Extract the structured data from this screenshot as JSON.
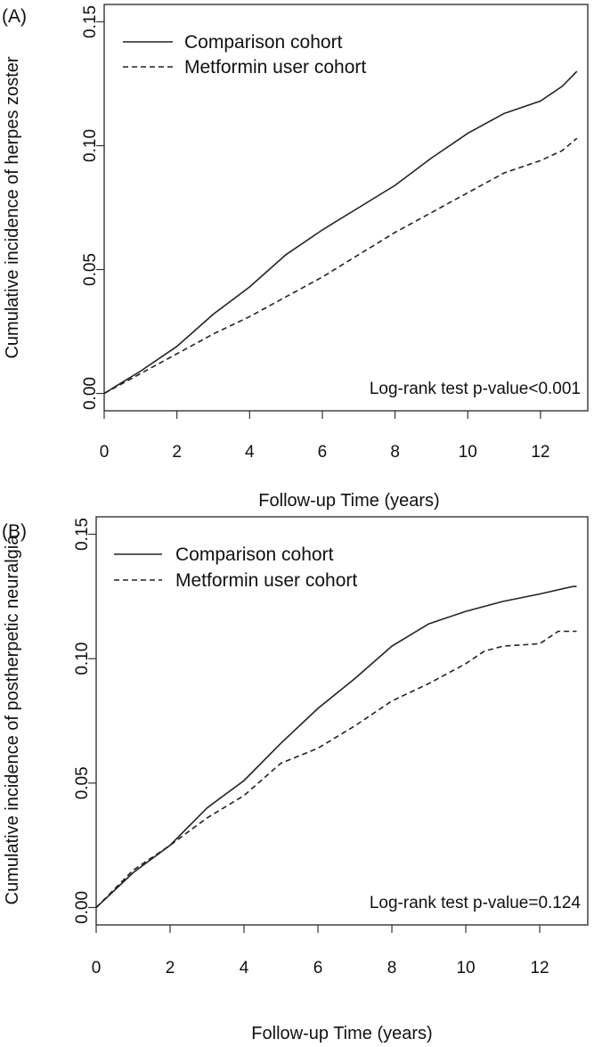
{
  "chart_data": [
    {
      "type": "line",
      "panel_label": "(A)",
      "title": "",
      "xlabel": "Follow-up Time (years)",
      "ylabel": "Cumulative incidence of  herpes zoster",
      "xlim": [
        0,
        13.3
      ],
      "ylim": [
        -0.007,
        0.157
      ],
      "xticks": [
        0,
        2,
        4,
        6,
        8,
        10,
        12
      ],
      "yticks": [
        "0.00",
        "0.05",
        "0.10",
        "0.15"
      ],
      "grid": false,
      "legend_position": "top-left",
      "annotation": "Log-rank test p-value<0.001",
      "series": [
        {
          "name": "Comparison cohort",
          "style": "solid",
          "x": [
            0,
            1,
            2,
            3,
            4,
            5,
            6,
            7,
            8,
            9,
            10,
            11,
            12,
            12.6,
            13
          ],
          "y": [
            0,
            0.009,
            0.019,
            0.032,
            0.043,
            0.056,
            0.066,
            0.075,
            0.084,
            0.095,
            0.105,
            0.113,
            0.118,
            0.124,
            0.13
          ]
        },
        {
          "name": "Metformin user cohort",
          "style": "dashed",
          "x": [
            0,
            1,
            2,
            3,
            4,
            5,
            6,
            7,
            8,
            9,
            10,
            11,
            12,
            12.6,
            13
          ],
          "y": [
            0,
            0.008,
            0.016,
            0.024,
            0.031,
            0.039,
            0.047,
            0.056,
            0.065,
            0.073,
            0.081,
            0.089,
            0.094,
            0.098,
            0.103
          ]
        }
      ]
    },
    {
      "type": "line",
      "panel_label": "(B)",
      "title": "",
      "xlabel": "Follow-up Time (years)",
      "ylabel": "Cumulative incidence of  postherpetic  neuralgia",
      "xlim": [
        0,
        13.3
      ],
      "ylim": [
        -0.007,
        0.157
      ],
      "xticks": [
        0,
        2,
        4,
        6,
        8,
        10,
        12
      ],
      "yticks": [
        "0.00",
        "0.05",
        "0.10",
        "0.15"
      ],
      "grid": false,
      "legend_position": "top-left",
      "annotation": "Log-rank test p-value=0.124",
      "series": [
        {
          "name": "Comparison cohort",
          "style": "solid",
          "x": [
            0,
            1,
            2,
            3,
            4,
            5,
            6,
            7,
            8,
            9,
            10,
            11,
            12,
            12.9,
            13
          ],
          "y": [
            0,
            0.014,
            0.025,
            0.04,
            0.051,
            0.066,
            0.08,
            0.092,
            0.105,
            0.114,
            0.119,
            0.123,
            0.126,
            0.129,
            0.129
          ]
        },
        {
          "name": "Metformin user cohort",
          "style": "dashed",
          "x": [
            0,
            1,
            2,
            3,
            4,
            5,
            6,
            7,
            8,
            9,
            10,
            10.5,
            11,
            12,
            12.5,
            13
          ],
          "y": [
            0,
            0.015,
            0.025,
            0.036,
            0.045,
            0.058,
            0.064,
            0.073,
            0.083,
            0.09,
            0.098,
            0.103,
            0.105,
            0.106,
            0.111,
            0.111
          ]
        }
      ]
    }
  ]
}
